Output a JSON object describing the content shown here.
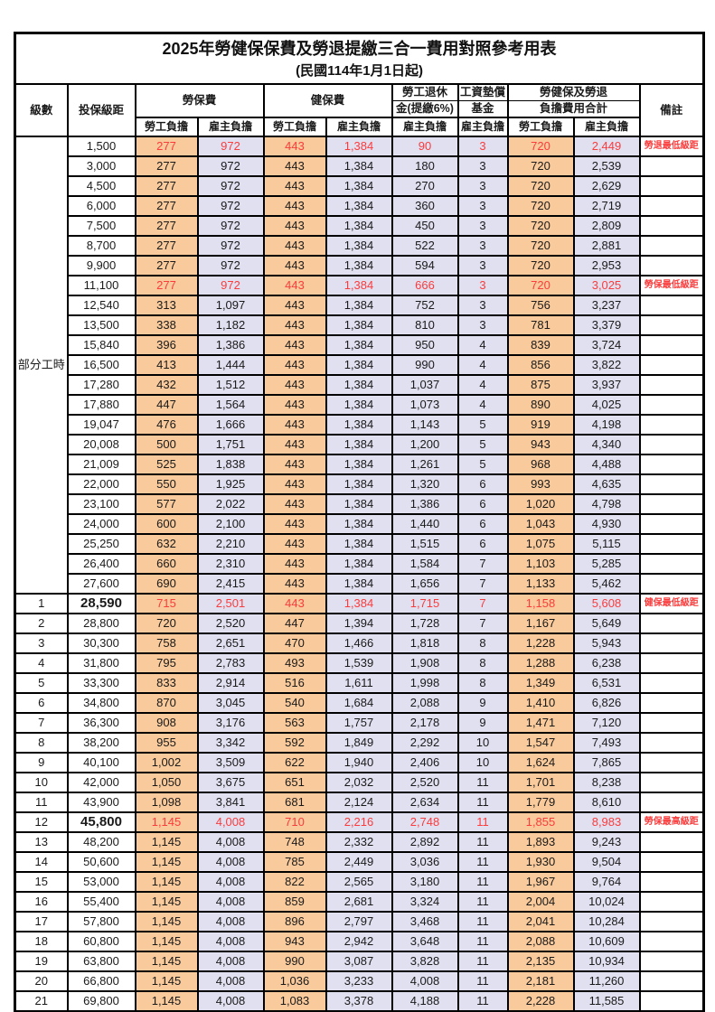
{
  "title": "2025年勞健保保費及勞退提繳三合一費用對照參考用表",
  "subtitle": "(民國114年1月1日起)",
  "header": {
    "level": "級數",
    "bracket": "投保級距",
    "labor_ins": "勞保費",
    "health_ins": "健保費",
    "pension_line1": "勞工退休",
    "pension_line2": "金(提繳6%)",
    "fund_line1": "工資墊償",
    "fund_line2": "基金",
    "total_line1": "勞健保及勞退",
    "total_line2": "負擔費用合計",
    "remark": "備註",
    "employee": "勞工負擔",
    "employer": "雇主負擔"
  },
  "colors": {
    "employee_bg": "#f9ca9b",
    "employer_bg": "#e1e0f1",
    "highlight_red": "#fa3c3c",
    "border": "#000000"
  },
  "part_time": {
    "label": "部分工時",
    "rowspan": 23
  },
  "rows": [
    {
      "level": "",
      "bracket": "1,500",
      "values": [
        "277",
        "972",
        "443",
        "1,384",
        "90",
        "3",
        "720",
        "2,449"
      ],
      "remark": "勞退最低級距",
      "red": true
    },
    {
      "level": "",
      "bracket": "3,000",
      "values": [
        "277",
        "972",
        "443",
        "1,384",
        "180",
        "3",
        "720",
        "2,539"
      ],
      "remark": ""
    },
    {
      "level": "",
      "bracket": "4,500",
      "values": [
        "277",
        "972",
        "443",
        "1,384",
        "270",
        "3",
        "720",
        "2,629"
      ],
      "remark": ""
    },
    {
      "level": "",
      "bracket": "6,000",
      "values": [
        "277",
        "972",
        "443",
        "1,384",
        "360",
        "3",
        "720",
        "2,719"
      ],
      "remark": ""
    },
    {
      "level": "",
      "bracket": "7,500",
      "values": [
        "277",
        "972",
        "443",
        "1,384",
        "450",
        "3",
        "720",
        "2,809"
      ],
      "remark": ""
    },
    {
      "level": "",
      "bracket": "8,700",
      "values": [
        "277",
        "972",
        "443",
        "1,384",
        "522",
        "3",
        "720",
        "2,881"
      ],
      "remark": ""
    },
    {
      "level": "",
      "bracket": "9,900",
      "values": [
        "277",
        "972",
        "443",
        "1,384",
        "594",
        "3",
        "720",
        "2,953"
      ],
      "remark": ""
    },
    {
      "level": "",
      "bracket": "11,100",
      "values": [
        "277",
        "972",
        "443",
        "1,384",
        "666",
        "3",
        "720",
        "3,025"
      ],
      "remark": "勞保最低級距",
      "red": true
    },
    {
      "level": "",
      "bracket": "12,540",
      "values": [
        "313",
        "1,097",
        "443",
        "1,384",
        "752",
        "3",
        "756",
        "3,237"
      ],
      "remark": ""
    },
    {
      "level": "",
      "bracket": "13,500",
      "values": [
        "338",
        "1,182",
        "443",
        "1,384",
        "810",
        "3",
        "781",
        "3,379"
      ],
      "remark": ""
    },
    {
      "level": "",
      "bracket": "15,840",
      "values": [
        "396",
        "1,386",
        "443",
        "1,384",
        "950",
        "4",
        "839",
        "3,724"
      ],
      "remark": ""
    },
    {
      "level": "",
      "bracket": "16,500",
      "values": [
        "413",
        "1,444",
        "443",
        "1,384",
        "990",
        "4",
        "856",
        "3,822"
      ],
      "remark": ""
    },
    {
      "level": "",
      "bracket": "17,280",
      "values": [
        "432",
        "1,512",
        "443",
        "1,384",
        "1,037",
        "4",
        "875",
        "3,937"
      ],
      "remark": ""
    },
    {
      "level": "",
      "bracket": "17,880",
      "values": [
        "447",
        "1,564",
        "443",
        "1,384",
        "1,073",
        "4",
        "890",
        "4,025"
      ],
      "remark": ""
    },
    {
      "level": "",
      "bracket": "19,047",
      "values": [
        "476",
        "1,666",
        "443",
        "1,384",
        "1,143",
        "5",
        "919",
        "4,198"
      ],
      "remark": ""
    },
    {
      "level": "",
      "bracket": "20,008",
      "values": [
        "500",
        "1,751",
        "443",
        "1,384",
        "1,200",
        "5",
        "943",
        "4,340"
      ],
      "remark": ""
    },
    {
      "level": "",
      "bracket": "21,009",
      "values": [
        "525",
        "1,838",
        "443",
        "1,384",
        "1,261",
        "5",
        "968",
        "4,488"
      ],
      "remark": ""
    },
    {
      "level": "",
      "bracket": "22,000",
      "values": [
        "550",
        "1,925",
        "443",
        "1,384",
        "1,320",
        "6",
        "993",
        "4,635"
      ],
      "remark": ""
    },
    {
      "level": "",
      "bracket": "23,100",
      "values": [
        "577",
        "2,022",
        "443",
        "1,384",
        "1,386",
        "6",
        "1,020",
        "4,798"
      ],
      "remark": ""
    },
    {
      "level": "",
      "bracket": "24,000",
      "values": [
        "600",
        "2,100",
        "443",
        "1,384",
        "1,440",
        "6",
        "1,043",
        "4,930"
      ],
      "remark": ""
    },
    {
      "level": "",
      "bracket": "25,250",
      "values": [
        "632",
        "2,210",
        "443",
        "1,384",
        "1,515",
        "6",
        "1,075",
        "5,115"
      ],
      "remark": ""
    },
    {
      "level": "",
      "bracket": "26,400",
      "values": [
        "660",
        "2,310",
        "443",
        "1,384",
        "1,584",
        "7",
        "1,103",
        "5,285"
      ],
      "remark": ""
    },
    {
      "level": "",
      "bracket": "27,600",
      "values": [
        "690",
        "2,415",
        "443",
        "1,384",
        "1,656",
        "7",
        "1,133",
        "5,462"
      ],
      "remark": ""
    },
    {
      "level": "1",
      "bracket": "28,590",
      "values": [
        "715",
        "2,501",
        "443",
        "1,384",
        "1,715",
        "7",
        "1,158",
        "5,608"
      ],
      "remark": "健保最低級距",
      "red": true,
      "bold_bracket": true
    },
    {
      "level": "2",
      "bracket": "28,800",
      "values": [
        "720",
        "2,520",
        "447",
        "1,394",
        "1,728",
        "7",
        "1,167",
        "5,649"
      ],
      "remark": ""
    },
    {
      "level": "3",
      "bracket": "30,300",
      "values": [
        "758",
        "2,651",
        "470",
        "1,466",
        "1,818",
        "8",
        "1,228",
        "5,943"
      ],
      "remark": ""
    },
    {
      "level": "4",
      "bracket": "31,800",
      "values": [
        "795",
        "2,783",
        "493",
        "1,539",
        "1,908",
        "8",
        "1,288",
        "6,238"
      ],
      "remark": ""
    },
    {
      "level": "5",
      "bracket": "33,300",
      "values": [
        "833",
        "2,914",
        "516",
        "1,611",
        "1,998",
        "8",
        "1,349",
        "6,531"
      ],
      "remark": ""
    },
    {
      "level": "6",
      "bracket": "34,800",
      "values": [
        "870",
        "3,045",
        "540",
        "1,684",
        "2,088",
        "9",
        "1,410",
        "6,826"
      ],
      "remark": ""
    },
    {
      "level": "7",
      "bracket": "36,300",
      "values": [
        "908",
        "3,176",
        "563",
        "1,757",
        "2,178",
        "9",
        "1,471",
        "7,120"
      ],
      "remark": ""
    },
    {
      "level": "8",
      "bracket": "38,200",
      "values": [
        "955",
        "3,342",
        "592",
        "1,849",
        "2,292",
        "10",
        "1,547",
        "7,493"
      ],
      "remark": ""
    },
    {
      "level": "9",
      "bracket": "40,100",
      "values": [
        "1,002",
        "3,509",
        "622",
        "1,940",
        "2,406",
        "10",
        "1,624",
        "7,865"
      ],
      "remark": ""
    },
    {
      "level": "10",
      "bracket": "42,000",
      "values": [
        "1,050",
        "3,675",
        "651",
        "2,032",
        "2,520",
        "11",
        "1,701",
        "8,238"
      ],
      "remark": ""
    },
    {
      "level": "11",
      "bracket": "43,900",
      "values": [
        "1,098",
        "3,841",
        "681",
        "2,124",
        "2,634",
        "11",
        "1,779",
        "8,610"
      ],
      "remark": ""
    },
    {
      "level": "12",
      "bracket": "45,800",
      "values": [
        "1,145",
        "4,008",
        "710",
        "2,216",
        "2,748",
        "11",
        "1,855",
        "8,983"
      ],
      "remark": "勞保最高級距",
      "red": true,
      "bold_bracket": true
    },
    {
      "level": "13",
      "bracket": "48,200",
      "values": [
        "1,145",
        "4,008",
        "748",
        "2,332",
        "2,892",
        "11",
        "1,893",
        "9,243"
      ],
      "remark": ""
    },
    {
      "level": "14",
      "bracket": "50,600",
      "values": [
        "1,145",
        "4,008",
        "785",
        "2,449",
        "3,036",
        "11",
        "1,930",
        "9,504"
      ],
      "remark": ""
    },
    {
      "level": "15",
      "bracket": "53,000",
      "values": [
        "1,145",
        "4,008",
        "822",
        "2,565",
        "3,180",
        "11",
        "1,967",
        "9,764"
      ],
      "remark": ""
    },
    {
      "level": "16",
      "bracket": "55,400",
      "values": [
        "1,145",
        "4,008",
        "859",
        "2,681",
        "3,324",
        "11",
        "2,004",
        "10,024"
      ],
      "remark": ""
    },
    {
      "level": "17",
      "bracket": "57,800",
      "values": [
        "1,145",
        "4,008",
        "896",
        "2,797",
        "3,468",
        "11",
        "2,041",
        "10,284"
      ],
      "remark": ""
    },
    {
      "level": "18",
      "bracket": "60,800",
      "values": [
        "1,145",
        "4,008",
        "943",
        "2,942",
        "3,648",
        "11",
        "2,088",
        "10,609"
      ],
      "remark": ""
    },
    {
      "level": "19",
      "bracket": "63,800",
      "values": [
        "1,145",
        "4,008",
        "990",
        "3,087",
        "3,828",
        "11",
        "2,135",
        "10,934"
      ],
      "remark": ""
    },
    {
      "level": "20",
      "bracket": "66,800",
      "values": [
        "1,145",
        "4,008",
        "1,036",
        "3,233",
        "4,008",
        "11",
        "2,181",
        "11,260"
      ],
      "remark": ""
    },
    {
      "level": "21",
      "bracket": "69,800",
      "values": [
        "1,145",
        "4,008",
        "1,083",
        "3,378",
        "4,188",
        "11",
        "2,228",
        "11,585"
      ],
      "remark": ""
    }
  ]
}
